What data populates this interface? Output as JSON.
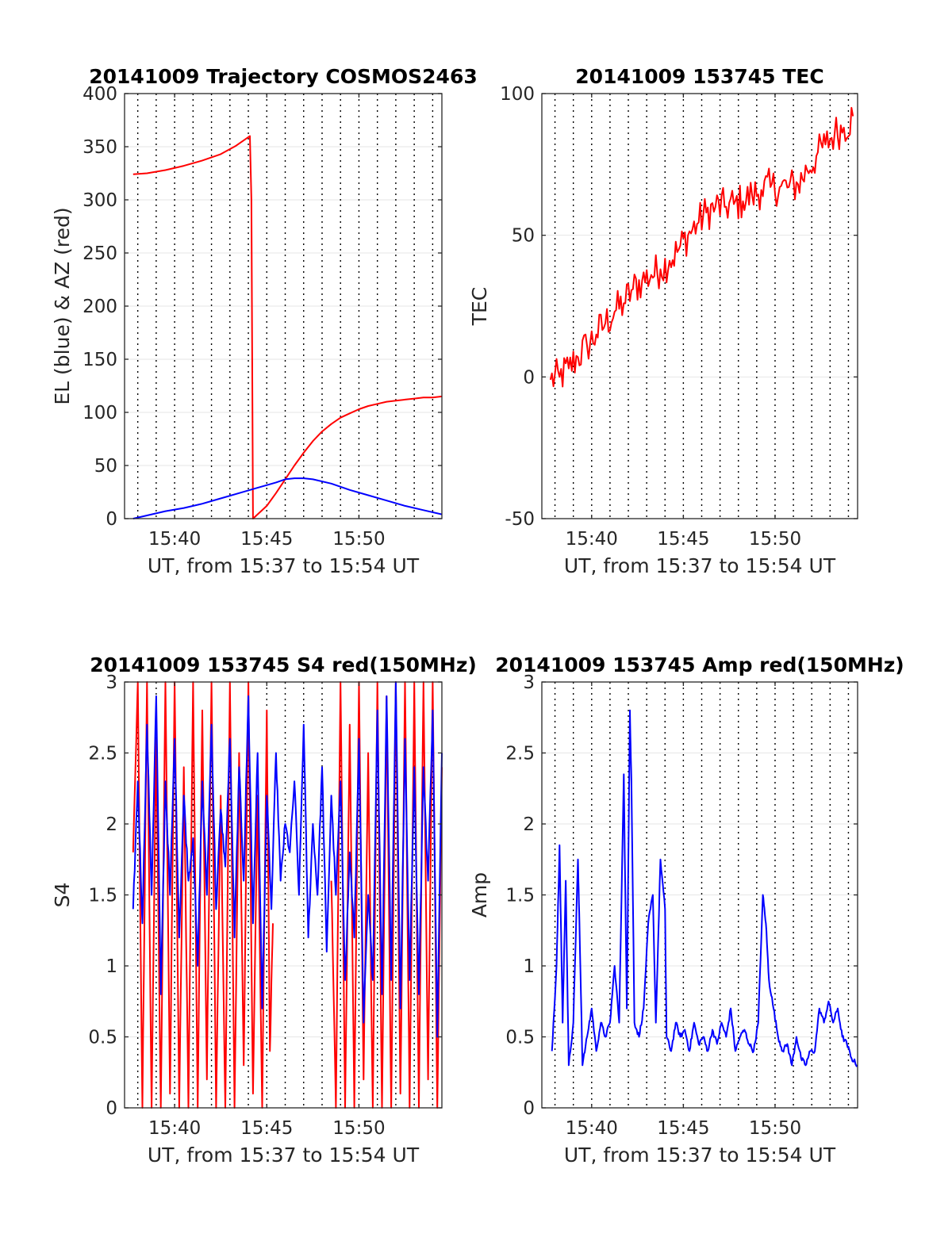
{
  "figure": {
    "background": "#ffffff"
  },
  "chart_data": [
    {
      "type": "line",
      "title": "20141009 Trajectory COSMOS2463",
      "xlabel": "UT, from 15:37 to 15:54 UT",
      "ylabel": "EL (blue) & AZ (red)",
      "xlim": [
        "15:37:17",
        "15:54:30"
      ],
      "ylim": [
        0,
        400
      ],
      "yticks": [
        0,
        50,
        100,
        150,
        200,
        250,
        300,
        350,
        400
      ],
      "xticks": [
        "15:40",
        "15:45",
        "15:50"
      ],
      "grid": true,
      "series": [
        {
          "color": "#ff0000",
          "x": [
            "15:37:45",
            "15:38:30",
            "15:39:30",
            "15:40:30",
            "15:41:30",
            "15:42:30",
            "15:43:20",
            "15:44:05",
            "15:44:10",
            "15:44:15",
            "15:45:00",
            "15:45:30",
            "15:46:00",
            "15:46:30",
            "15:47:00",
            "15:47:30",
            "15:48:00",
            "15:48:30",
            "15:49:00",
            "15:49:30",
            "15:50:00",
            "15:50:30",
            "15:51:00",
            "15:51:30",
            "15:52:00",
            "15:52:30",
            "15:53:00",
            "15:53:30",
            "15:54:00",
            "15:54:30"
          ],
          "values": [
            324,
            325,
            328,
            332,
            337,
            343,
            351,
            360,
            300,
            0,
            12,
            24,
            37,
            50,
            62,
            73,
            82,
            89,
            95,
            99,
            103,
            106,
            108,
            110,
            111,
            112,
            113,
            114,
            114,
            115
          ]
        },
        {
          "color": "#0000ff",
          "x": [
            "15:37:45",
            "15:38:30",
            "15:39:30",
            "15:40:30",
            "15:41:30",
            "15:42:30",
            "15:43:30",
            "15:44:30",
            "15:45:30",
            "15:46:00",
            "15:46:30",
            "15:47:00",
            "15:47:30",
            "15:48:30",
            "15:49:30",
            "15:50:30",
            "15:51:30",
            "15:52:30",
            "15:53:30",
            "15:54:30"
          ],
          "values": [
            0,
            3,
            7,
            10,
            14,
            19,
            24,
            29,
            34,
            37,
            38,
            38,
            37,
            33,
            27,
            22,
            17,
            12,
            8,
            4
          ]
        }
      ]
    },
    {
      "type": "line",
      "title": "20141009 153745 TEC",
      "xlabel": "UT, from 15:37 to 15:54 UT",
      "ylabel": "TEC",
      "xlim": [
        "15:37:17",
        "15:54:30"
      ],
      "ylim": [
        -50,
        100
      ],
      "yticks": [
        -50,
        0,
        50,
        100
      ],
      "xticks": [
        "15:40",
        "15:45",
        "15:50"
      ],
      "grid": true,
      "series": [
        {
          "color": "#ff0000",
          "x": [
            "15:37:45",
            "15:38:15",
            "15:38:45",
            "15:39:15",
            "15:39:45",
            "15:40:15",
            "15:40:45",
            "15:41:15",
            "15:41:45",
            "15:42:15",
            "15:42:45",
            "15:43:15",
            "15:43:45",
            "15:44:15",
            "15:44:45",
            "15:45:15",
            "15:45:45",
            "15:46:15",
            "15:46:45",
            "15:47:15",
            "15:47:45",
            "15:48:15",
            "15:48:45",
            "15:49:15",
            "15:49:45",
            "15:50:15",
            "15:50:45",
            "15:51:15",
            "15:51:45",
            "15:52:15",
            "15:52:45",
            "15:53:15",
            "15:53:45",
            "15:54:15"
          ],
          "values": [
            -1,
            0,
            3,
            7,
            11,
            15,
            19,
            23,
            26,
            31,
            34,
            36,
            38,
            41,
            45,
            50,
            54,
            58,
            60,
            60,
            61,
            62,
            64,
            66,
            67,
            67,
            67,
            68,
            73,
            78,
            82,
            86,
            88,
            92
          ]
        }
      ]
    },
    {
      "type": "line",
      "title": "20141009 153745 S4 red(150MHz)",
      "xlabel": "UT, from 15:37 to 15:54 UT",
      "ylabel": "S4",
      "xlim": [
        "15:37:17",
        "15:54:30"
      ],
      "ylim": [
        0,
        3
      ],
      "yticks": [
        0,
        0.5,
        1,
        1.5,
        2,
        2.5,
        3
      ],
      "xticks": [
        "15:40",
        "15:45",
        "15:50"
      ],
      "grid": true,
      "series": [
        {
          "color": "#ff0000",
          "x": [
            "15:37:45",
            "15:38:00",
            "15:38:15",
            "15:38:30",
            "15:38:45",
            "15:39:00",
            "15:39:15",
            "15:39:30",
            "15:39:45",
            "15:40:00",
            "15:40:15",
            "15:40:30",
            "15:40:45",
            "15:41:00",
            "15:41:15",
            "15:41:30",
            "15:41:45",
            "15:42:00",
            "15:42:15",
            "15:42:30",
            "15:42:45",
            "15:43:00",
            "15:43:15",
            "15:43:30",
            "15:43:45",
            "15:44:00",
            "15:44:15",
            "15:44:30",
            "15:44:45",
            "15:45:00",
            "15:45:10",
            "15:45:20",
            "15:46:00",
            "15:47:00",
            "15:48:00",
            "15:48:30",
            "15:48:45",
            "15:49:00",
            "15:49:15",
            "15:49:30",
            "15:49:45",
            "15:50:00",
            "15:50:15",
            "15:50:30",
            "15:50:45",
            "15:51:00",
            "15:51:15",
            "15:51:30",
            "15:51:45",
            "15:52:00",
            "15:52:15",
            "15:52:30",
            "15:52:45",
            "15:53:00",
            "15:53:15",
            "15:53:30",
            "15:53:45",
            "15:54:00",
            "15:54:15",
            "15:54:30"
          ],
          "values": [
            1.8,
            3,
            0,
            3,
            0,
            2.6,
            0,
            3,
            0.1,
            3,
            0,
            2.4,
            0,
            3,
            0,
            2.8,
            0.2,
            3,
            0,
            2.2,
            0,
            3,
            0,
            2.5,
            0.3,
            3,
            0.1,
            2.2,
            0,
            2.8,
            0.4,
            1.3,
            null,
            null,
            null,
            1.6,
            0,
            3,
            0,
            2.7,
            0,
            3,
            0.2,
            2.5,
            0,
            3,
            0,
            2.9,
            0,
            3,
            0.1,
            3,
            0,
            3,
            0,
            3,
            0.2,
            3,
            0,
            2.4
          ]
        },
        {
          "color": "#0000ff",
          "x": [
            "15:37:45",
            "15:38:00",
            "15:38:15",
            "15:38:30",
            "15:38:45",
            "15:39:00",
            "15:39:15",
            "15:39:30",
            "15:39:45",
            "15:40:00",
            "15:40:15",
            "15:40:30",
            "15:40:45",
            "15:41:00",
            "15:41:15",
            "15:41:30",
            "15:41:45",
            "15:42:00",
            "15:42:15",
            "15:42:30",
            "15:42:45",
            "15:43:00",
            "15:43:15",
            "15:43:30",
            "15:43:45",
            "15:44:00",
            "15:44:15",
            "15:44:30",
            "15:44:45",
            "15:45:00",
            "15:45:15",
            "15:45:30",
            "15:45:45",
            "15:46:00",
            "15:46:15",
            "15:46:30",
            "15:46:45",
            "15:47:00",
            "15:47:15",
            "15:47:30",
            "15:47:45",
            "15:48:00",
            "15:48:15",
            "15:48:30",
            "15:48:45",
            "15:49:00",
            "15:49:15",
            "15:49:30",
            "15:49:45",
            "15:50:00",
            "15:50:15",
            "15:50:30",
            "15:50:45",
            "15:51:00",
            "15:51:15",
            "15:51:30",
            "15:51:45",
            "15:52:00",
            "15:52:15",
            "15:52:30",
            "15:52:45",
            "15:53:00",
            "15:53:15",
            "15:53:30",
            "15:53:45",
            "15:54:00",
            "15:54:15",
            "15:54:30"
          ],
          "values": [
            1.4,
            2.3,
            1.3,
            2.7,
            1.5,
            2.9,
            0.8,
            2.3,
            1.5,
            2.6,
            1.2,
            2.2,
            1.6,
            1.9,
            1.0,
            2.3,
            1.5,
            2.7,
            1.4,
            2.1,
            1.7,
            2.6,
            1.2,
            2.4,
            1.6,
            2.9,
            1.3,
            2.5,
            0.7,
            2.2,
            1.4,
            2.5,
            1.6,
            2.0,
            1.8,
            2.3,
            1.5,
            2.7,
            1.2,
            2.0,
            1.5,
            2.4,
            1.1,
            2.2,
            1.5,
            2.3,
            0.9,
            1.8,
            1.2,
            2.6,
            0.6,
            1.5,
            0.9,
            2.8,
            0.8,
            2.9,
            0.9,
            3.0,
            0.7,
            2.6,
            0.9,
            2.4,
            0.8,
            2.4,
            1.6,
            2.8,
            0.5,
            2.5
          ]
        }
      ]
    },
    {
      "type": "line",
      "title": "20141009 153745 Amp red(150MHz)",
      "xlabel": "UT, from 15:37 to 15:54 UT",
      "ylabel": "Amp",
      "xlim": [
        "15:37:17",
        "15:54:30"
      ],
      "ylim": [
        0,
        3
      ],
      "yticks": [
        0,
        0.5,
        1,
        1.5,
        2,
        2.5,
        3
      ],
      "xticks": [
        "15:40",
        "15:45",
        "15:50"
      ],
      "grid": true,
      "series": [
        {
          "color": "#0000ff",
          "x": [
            "15:37:50",
            "15:38:05",
            "15:38:15",
            "15:38:25",
            "15:38:35",
            "15:38:45",
            "15:39:00",
            "15:39:15",
            "15:39:20",
            "15:39:30",
            "15:39:45",
            "15:40:00",
            "15:40:15",
            "15:40:30",
            "15:40:45",
            "15:41:00",
            "15:41:15",
            "15:41:30",
            "15:41:45",
            "15:41:55",
            "15:42:05",
            "15:42:10",
            "15:42:20",
            "15:42:35",
            "15:42:50",
            "15:43:05",
            "15:43:20",
            "15:43:30",
            "15:43:45",
            "15:44:00",
            "15:44:05",
            "15:44:20",
            "15:44:35",
            "15:44:50",
            "15:45:05",
            "15:45:20",
            "15:45:35",
            "15:45:50",
            "15:46:05",
            "15:46:20",
            "15:46:35",
            "15:46:50",
            "15:47:05",
            "15:47:20",
            "15:47:35",
            "15:47:50",
            "15:48:05",
            "15:48:20",
            "15:48:35",
            "15:48:50",
            "15:49:05",
            "15:49:20",
            "15:49:30",
            "15:49:40",
            "15:49:55",
            "15:50:10",
            "15:50:25",
            "15:50:40",
            "15:50:55",
            "15:51:10",
            "15:51:25",
            "15:51:40",
            "15:51:55",
            "15:52:10",
            "15:52:25",
            "15:52:40",
            "15:52:55",
            "15:53:10",
            "15:53:25",
            "15:53:40",
            "15:53:55",
            "15:54:10",
            "15:54:30"
          ],
          "values": [
            0.4,
            1.0,
            1.85,
            0.6,
            1.6,
            0.3,
            0.6,
            1.75,
            1.3,
            0.3,
            0.5,
            0.7,
            0.4,
            0.6,
            0.5,
            0.6,
            1.0,
            0.6,
            2.35,
            0.7,
            2.8,
            2.3,
            0.6,
            0.5,
            0.7,
            1.3,
            1.5,
            0.6,
            1.75,
            1.4,
            0.5,
            0.4,
            0.6,
            0.5,
            0.55,
            0.4,
            0.6,
            0.45,
            0.5,
            0.4,
            0.55,
            0.45,
            0.6,
            0.5,
            0.7,
            0.4,
            0.5,
            0.55,
            0.45,
            0.4,
            0.6,
            1.5,
            1.3,
            0.9,
            0.7,
            0.5,
            0.4,
            0.45,
            0.3,
            0.5,
            0.35,
            0.3,
            0.4,
            0.4,
            0.7,
            0.6,
            0.75,
            0.6,
            0.7,
            0.5,
            0.45,
            0.35,
            0.3
          ]
        }
      ]
    }
  ]
}
